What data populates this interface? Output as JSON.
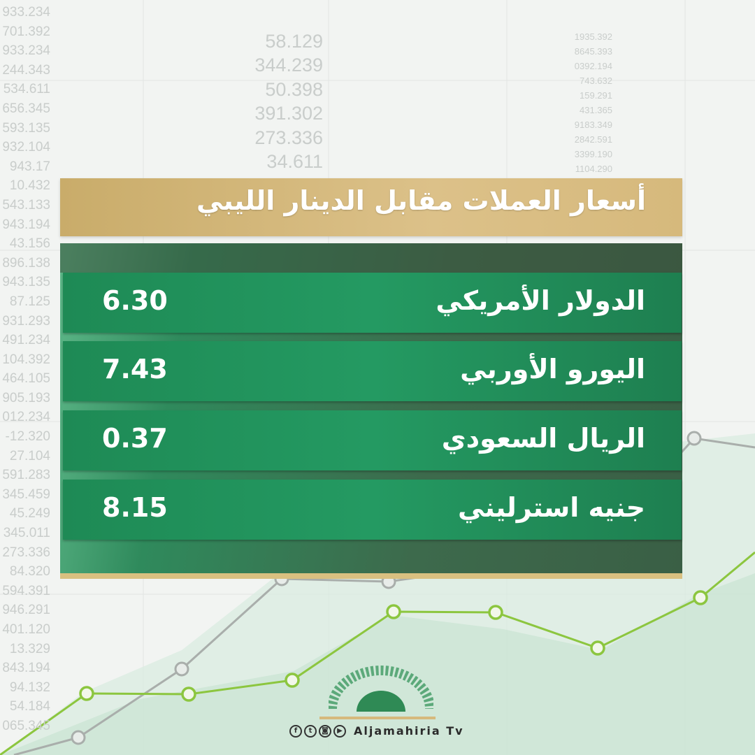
{
  "background_numbers": {
    "col1": [
      "933.234",
      "701.392",
      "933.234",
      "244.343",
      "534.611",
      "656.345",
      "593.135",
      "932.104",
      "943.17",
      "10.432",
      "543.133",
      "943.194",
      "43.156",
      "896.138",
      "943.135",
      "87.125",
      "931.293",
      "491.234",
      "104.392",
      "464.105",
      "905.193",
      "012.234",
      "-12.320",
      "27.104",
      "591.283",
      "345.459",
      "45.249",
      "345.011",
      "273.336",
      "84.320",
      "594.391",
      "946.291",
      "401.120",
      "13.329",
      "843.194",
      "94.132",
      "54.184",
      "065.345"
    ],
    "col2": [
      "58.129",
      "344.239",
      "50.398",
      "391.302",
      "273.336",
      "34.611"
    ],
    "col3": [
      "1935.392",
      "8645.393",
      "0392.194",
      "743.632",
      "159.291",
      "431.365",
      "9183.349",
      "2842.591",
      "3399.190",
      "1104.290"
    ]
  },
  "header": {
    "title": "أسعار العملات مقابل الدينار الليبي"
  },
  "rates": [
    {
      "currency": "الدولار الأمريكي",
      "value": "6.30"
    },
    {
      "currency": "اليورو الأوربي",
      "value": "7.43"
    },
    {
      "currency": "الريال السعودي",
      "value": "0.37"
    },
    {
      "currency": "جنيه استرليني",
      "value": "8.15"
    }
  ],
  "footer": {
    "social_icons": [
      "facebook-icon",
      "twitter-icon",
      "instagram-icon",
      "youtube-icon"
    ],
    "brand": "Aljamahiria Tv"
  },
  "colors": {
    "gold": "#d6b97c",
    "green": "#1f8c57",
    "line_green": "#8cc63f"
  }
}
